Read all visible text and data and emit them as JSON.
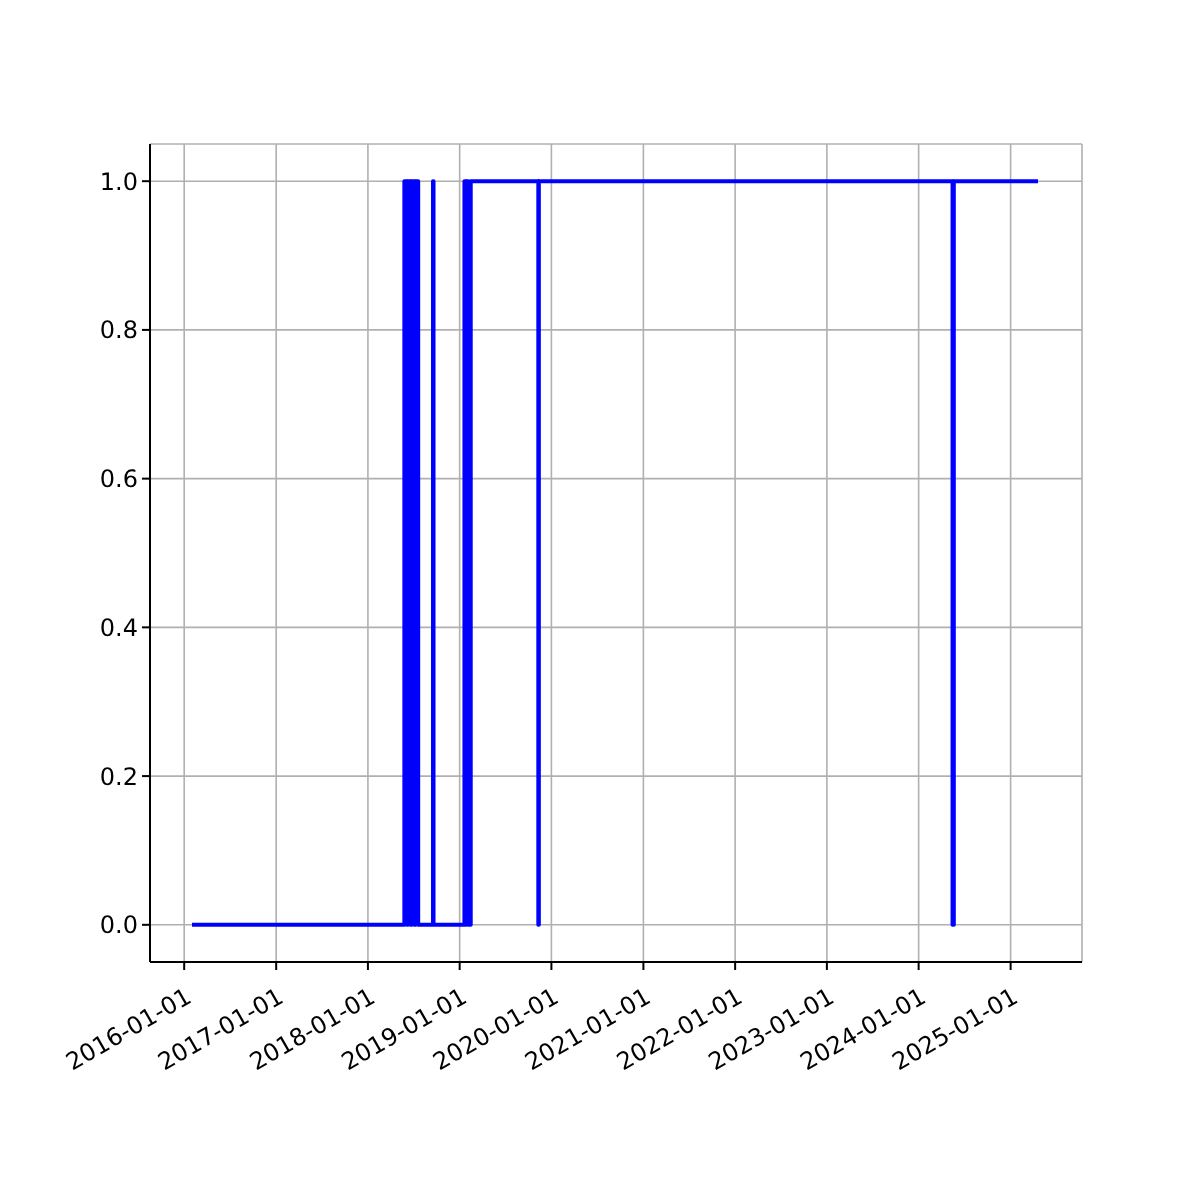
{
  "chart_data": {
    "type": "step",
    "x": [
      "2016-02-01",
      "2018-05-26",
      "2018-06-05",
      "2018-06-10",
      "2018-06-20",
      "2018-06-25",
      "2018-07-05",
      "2018-07-10",
      "2018-07-20",
      "2018-09-17",
      "2018-09-19",
      "2019-01-20",
      "2019-01-25",
      "2019-01-30",
      "2019-02-05",
      "2019-02-14",
      "2019-11-10",
      "2019-11-12",
      "2024-05-15",
      "2024-05-20",
      "2025-04-20"
    ],
    "series": [
      {
        "color": "#0000ff",
        "values": [
          0,
          1,
          0,
          1,
          0,
          1,
          0,
          1,
          0,
          1,
          0,
          1,
          0,
          1,
          0,
          1,
          0,
          1,
          0,
          1,
          1
        ]
      }
    ],
    "xlim": [
      "2015-08-18",
      "2025-10-12"
    ],
    "xticks": [
      "2016-01-01",
      "2017-01-01",
      "2018-01-01",
      "2019-01-01",
      "2020-01-01",
      "2021-01-01",
      "2022-01-01",
      "2023-01-01",
      "2024-01-01",
      "2025-01-01"
    ],
    "ylim": [
      -0.05,
      1.05
    ],
    "yticks": [
      {
        "value": 0,
        "label": "0.0"
      },
      {
        "value": 0.2,
        "label": "0.2"
      },
      {
        "value": 0.4,
        "label": "0.4"
      },
      {
        "value": 0.6,
        "label": "0.6"
      },
      {
        "value": 0.8,
        "label": "0.8"
      },
      {
        "value": 1,
        "label": "1.0"
      }
    ],
    "grid": true,
    "legend": false,
    "marker": "none",
    "line_style": "solid"
  }
}
